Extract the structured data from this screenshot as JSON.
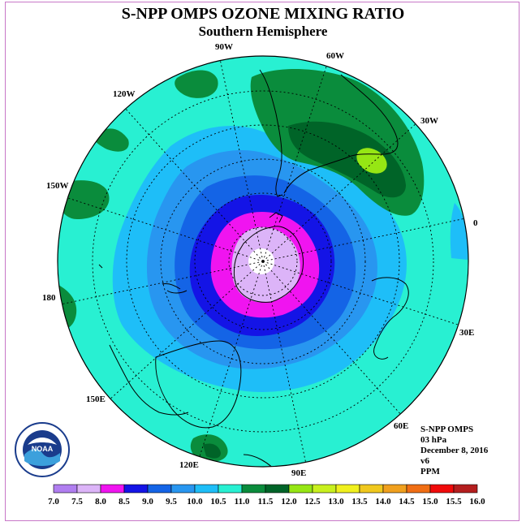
{
  "title": "S-NPP OMPS OZONE MIXING RATIO",
  "subtitle": "Southern Hemisphere",
  "logo_text": "NOAA",
  "info": {
    "product": "S-NPP OMPS",
    "level": "03 hPa",
    "date": "December 8, 2016",
    "version": "v6",
    "units": "PPM"
  },
  "longitude_labels": [
    {
      "text": "90W"
    },
    {
      "text": "60W"
    },
    {
      "text": "30W"
    },
    {
      "text": "0"
    },
    {
      "text": "120W"
    },
    {
      "text": "150W"
    },
    {
      "text": "180"
    },
    {
      "text": "30E"
    },
    {
      "text": "60E"
    },
    {
      "text": "90E"
    },
    {
      "text": "120E"
    },
    {
      "text": "150E"
    }
  ],
  "colorbar": {
    "ticks": [
      "7.0",
      "7.5",
      "8.0",
      "8.5",
      "9.0",
      "9.5",
      "10.0",
      "10.5",
      "11.0",
      "11.5",
      "12.0",
      "12.5",
      "13.0",
      "13.5",
      "14.0",
      "14.5",
      "15.0",
      "15.5",
      "16.0"
    ],
    "colors": [
      "#b07ef0",
      "#dcb4f8",
      "#f014f0",
      "#1414e6",
      "#1464e6",
      "#2896f0",
      "#1ebef8",
      "#28f0d2",
      "#0a8c3c",
      "#006428",
      "#96e614",
      "#c8f01e",
      "#f0f01e",
      "#f0c81e",
      "#f0a01e",
      "#f06e14",
      "#f00a0a",
      "#b41e1e"
    ]
  },
  "colors": {
    "background_field": "#28f0d2",
    "frame": "#c878c8"
  }
}
